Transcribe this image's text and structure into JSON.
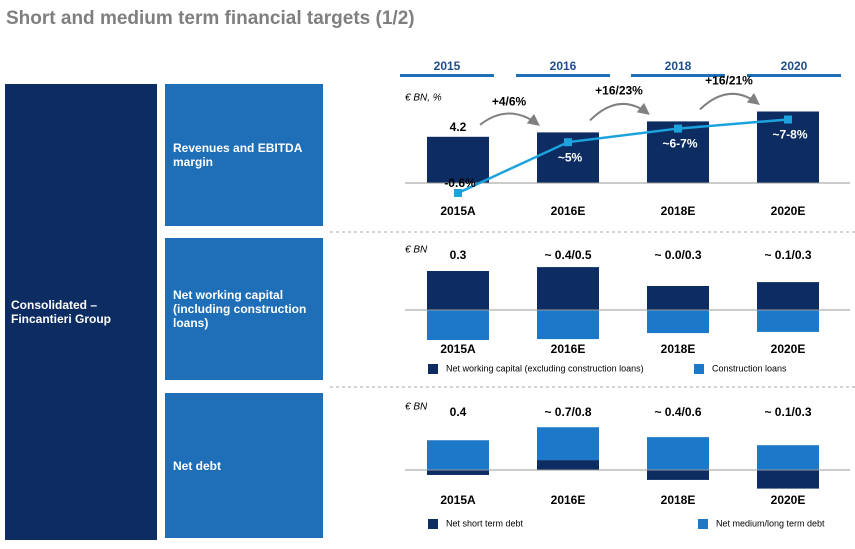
{
  "title": "Short and medium term financial targets (1/2)",
  "year_headers": [
    "2015",
    "2016",
    "2018",
    "2020"
  ],
  "group_label": "Consolidated – Fincantieri Group",
  "row_labels": [
    "Revenues and EBITDA margin",
    "Net working capital (including construction loans)",
    "Net debt"
  ],
  "chart_data": [
    {
      "type": "bar_line",
      "unit_label": "€ BN, %",
      "categories": [
        "2015A",
        "2016E",
        "2018E",
        "2020E"
      ],
      "ylim": [
        0,
        8
      ],
      "y2lim": [
        0.5,
        10.2
      ],
      "series": [
        {
          "type": "bar",
          "color": "#0d2d62",
          "values": [
            4.2,
            4.6,
            5.6,
            6.5
          ],
          "value_labels": [
            "4.2",
            null,
            null,
            null
          ]
        },
        {
          "type": "line",
          "axis": "y2",
          "color": "#1ca3dd",
          "values": [
            -0.6,
            5,
            6.5,
            7.5
          ],
          "value_labels": [
            "-0.6%",
            "~5%",
            "~6-7%",
            "~7-8%"
          ]
        }
      ],
      "annotations": [
        "+4/6%",
        "+16/23%",
        "+16/21%"
      ]
    },
    {
      "type": "stacked_bar",
      "unit_label": "€ BN",
      "categories": [
        "2015A",
        "2016E",
        "2018E",
        "2020E"
      ],
      "ylim": [
        -1.2,
        2.0
      ],
      "total_labels": [
        "0.3",
        "~ 0.4/0.5",
        "~ 0.0/0.3",
        "~ 0.1/0.3"
      ],
      "series": [
        {
          "name": "Net working capital (excluding construction loans)",
          "color": "#0d2d62",
          "values": [
            1.3,
            1.43,
            0.8,
            0.93
          ]
        },
        {
          "name": "Construction loans",
          "color": "#1c78c8",
          "values": [
            -1.0,
            -0.97,
            -0.77,
            -0.73
          ]
        }
      ]
    },
    {
      "type": "stacked_bar",
      "unit_label": "€ BN",
      "categories": [
        "2015A",
        "2016E",
        "2018E",
        "2020E"
      ],
      "ylim": [
        -0.4,
        1.0
      ],
      "total_labels": [
        "0.4",
        "~ 0.7/0.8",
        "~ 0.4/0.6",
        "~ 0.1/0.3"
      ],
      "series": [
        {
          "name": "Net short term debt",
          "color": "#0d2d62",
          "values": [
            -0.08,
            0.16,
            -0.16,
            -0.3
          ]
        },
        {
          "name": "Net medium/long term debt",
          "color": "#1c78c8",
          "values": [
            0.48,
            0.53,
            0.53,
            0.4
          ]
        }
      ]
    }
  ]
}
